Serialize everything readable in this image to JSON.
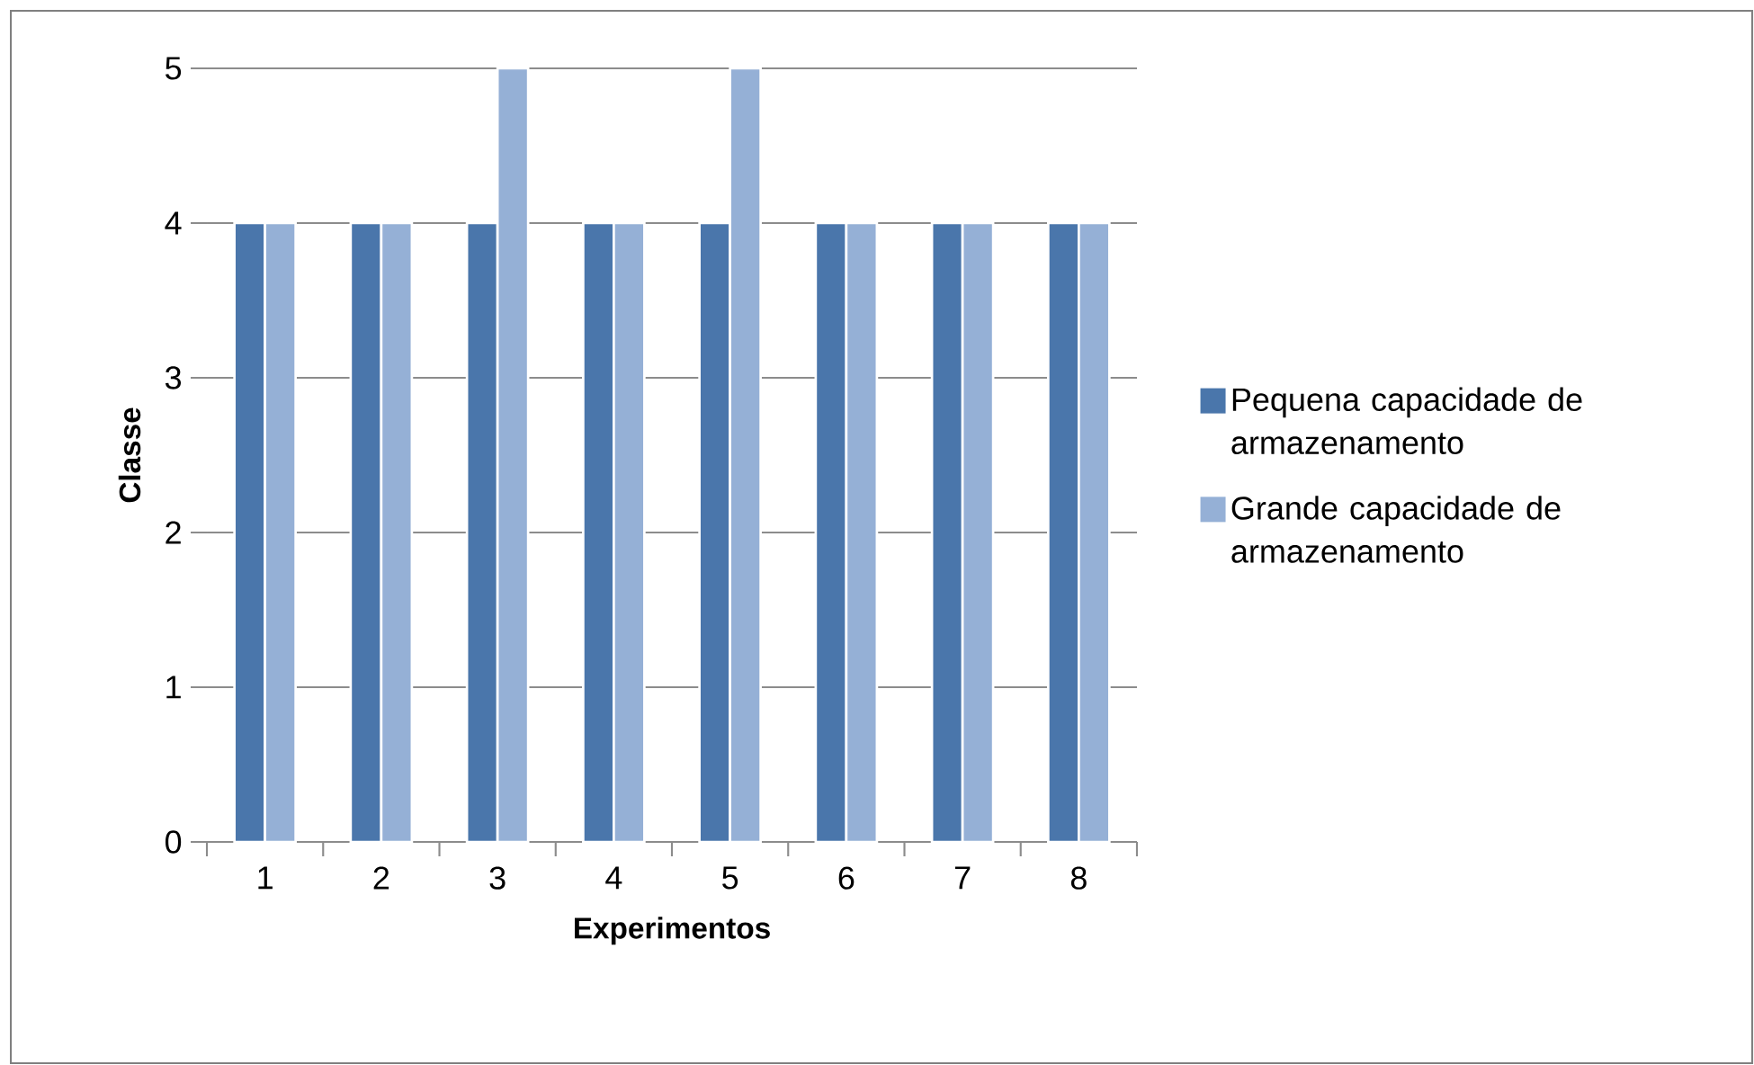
{
  "chart_data": {
    "type": "bar",
    "xlabel": "Experimentos",
    "ylabel": "Classe",
    "categories": [
      "1",
      "2",
      "3",
      "4",
      "5",
      "6",
      "7",
      "8"
    ],
    "series": [
      {
        "name": "Pequena capacidade de armazenamento",
        "color": "#4a76ab",
        "values": [
          4,
          4,
          4,
          4,
          4,
          4,
          4,
          4
        ]
      },
      {
        "name": "Grande capacidade de armazenamento",
        "color": "#95b0d6",
        "values": [
          4,
          4,
          5,
          4,
          5,
          4,
          4,
          4
        ]
      }
    ],
    "ylim": [
      0,
      5
    ],
    "yticks": [
      0,
      1,
      2,
      3,
      4,
      5
    ],
    "grid": "y",
    "legend": "right"
  }
}
